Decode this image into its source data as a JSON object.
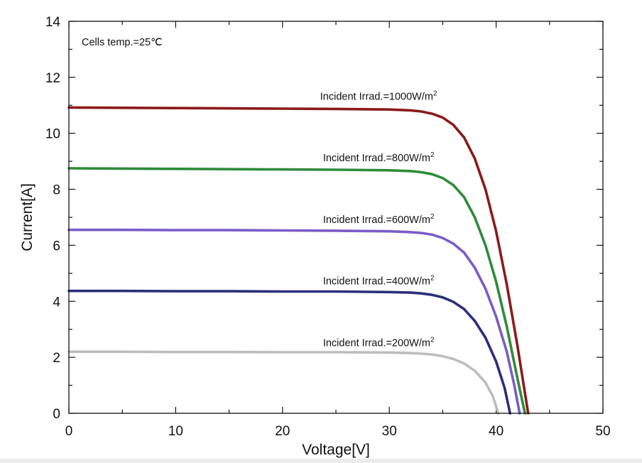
{
  "chart_data": {
    "type": "line",
    "xlabel": "Voltage[V]",
    "ylabel": "Current[A]",
    "xlim": [
      0,
      50
    ],
    "ylim": [
      0,
      14
    ],
    "x_ticks": [
      0,
      10,
      20,
      30,
      40,
      50
    ],
    "y_ticks": [
      0,
      2,
      4,
      6,
      8,
      10,
      12,
      14
    ],
    "grid": false,
    "annotation": "Cells temp.=25℃",
    "series": [
      {
        "name": "Incident Irrad.=1000W/m²",
        "label_base": "Incident Irrad.=1000W/m",
        "color": "#8b1a1a",
        "label_at": [
          29,
          11.2
        ],
        "x": [
          0,
          5,
          10,
          15,
          20,
          25,
          30,
          32,
          33,
          34,
          35,
          36,
          37,
          38,
          39,
          40,
          41,
          42,
          42.5,
          43
        ],
        "y": [
          10.92,
          10.91,
          10.9,
          10.89,
          10.88,
          10.87,
          10.85,
          10.82,
          10.78,
          10.7,
          10.56,
          10.3,
          9.85,
          9.1,
          8.0,
          6.5,
          4.6,
          2.4,
          1.2,
          0
        ]
      },
      {
        "name": "Incident Irrad.=800W/m²",
        "label_base": "Incident Irrad.=800W/m",
        "color": "#2e8b3a",
        "label_at": [
          29,
          9.0
        ],
        "x": [
          0,
          5,
          10,
          15,
          20,
          25,
          30,
          32,
          33,
          34,
          35,
          36,
          37,
          38,
          39,
          40,
          41,
          41.8,
          42.3,
          42.7
        ],
        "y": [
          8.75,
          8.74,
          8.73,
          8.72,
          8.71,
          8.7,
          8.68,
          8.65,
          8.61,
          8.54,
          8.4,
          8.15,
          7.72,
          7.0,
          6.0,
          4.7,
          3.1,
          1.6,
          0.7,
          0
        ]
      },
      {
        "name": "Incident Irrad.=600W/m²",
        "label_base": "Incident Irrad.=600W/m",
        "color": "#7a5cc8",
        "label_at": [
          29,
          6.8
        ],
        "x": [
          0,
          5,
          10,
          15,
          20,
          25,
          30,
          32,
          33,
          34,
          35,
          36,
          37,
          38,
          39,
          40,
          41,
          41.7,
          42.2
        ],
        "y": [
          6.55,
          6.55,
          6.54,
          6.54,
          6.53,
          6.52,
          6.5,
          6.47,
          6.44,
          6.38,
          6.26,
          6.06,
          5.74,
          5.2,
          4.45,
          3.45,
          2.2,
          1.0,
          0
        ]
      },
      {
        "name": "Incident Irrad.=400W/m²",
        "label_base": "Incident Irrad.=400W/m",
        "color": "#2a2f7a",
        "label_at": [
          29,
          4.6
        ],
        "x": [
          0,
          5,
          10,
          15,
          20,
          25,
          30,
          32,
          33,
          34,
          35,
          36,
          37,
          38,
          39,
          40,
          40.8,
          41.3
        ],
        "y": [
          4.37,
          4.37,
          4.36,
          4.36,
          4.35,
          4.35,
          4.33,
          4.31,
          4.28,
          4.23,
          4.14,
          3.98,
          3.72,
          3.3,
          2.7,
          1.85,
          0.9,
          0
        ]
      },
      {
        "name": "Incident Irrad.=200W/m²",
        "label_base": "Incident Irrad.=200W/m",
        "color": "#bdbdbd",
        "label_at": [
          29,
          2.4
        ],
        "x": [
          0,
          5,
          10,
          15,
          20,
          25,
          30,
          32,
          33,
          34,
          35,
          36,
          37,
          38,
          39,
          39.7,
          40.2
        ],
        "y": [
          2.2,
          2.2,
          2.19,
          2.19,
          2.18,
          2.18,
          2.17,
          2.15,
          2.13,
          2.1,
          2.04,
          1.94,
          1.78,
          1.52,
          1.1,
          0.6,
          0
        ]
      }
    ]
  }
}
